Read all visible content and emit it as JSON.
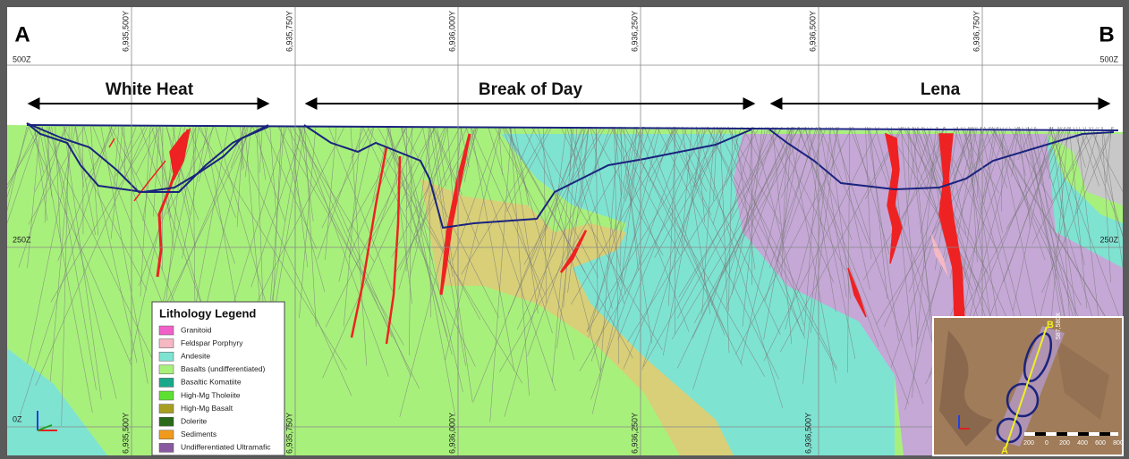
{
  "section_ends": {
    "start": "A",
    "end": "B"
  },
  "elevation_labels": {
    "top_left": "500Z",
    "top_right": "500Z",
    "mid_left": "250Z",
    "mid_right": "250Z",
    "bottom_left": "0Z"
  },
  "northings_top": [
    "6,935,500Y",
    "6,935,750Y",
    "6,936,000Y",
    "6,936,250Y",
    "6,936,500Y",
    "6,936,750Y"
  ],
  "northings_bottom": [
    "6,935,500Y",
    "6,935,750Y",
    "6,936,000Y",
    "6,936,250Y",
    "6,936,500Y"
  ],
  "deposits": [
    "White Heat",
    "Break of Day",
    "Lena"
  ],
  "legend": {
    "title": "Lithology Legend",
    "items": [
      {
        "label": "Granitoid",
        "color": "#f060c8"
      },
      {
        "label": "Feldspar Porphyry",
        "color": "#f6b8c2"
      },
      {
        "label": "Andesite",
        "color": "#7fe3d2"
      },
      {
        "label": "Basalts (undifferentiated)",
        "color": "#a8f07c"
      },
      {
        "label": "Basaltic Komatiite",
        "color": "#1aa88a"
      },
      {
        "label": "High-Mg Tholeiite",
        "color": "#5ee032"
      },
      {
        "label": "High-Mg Basalt",
        "color": "#a89e22"
      },
      {
        "label": "Dolerite",
        "color": "#2a6a1a"
      },
      {
        "label": "Sediments",
        "color": "#f09a1c"
      },
      {
        "label": "Undifferentiated Ultramafic",
        "color": "#8a5aa0"
      }
    ]
  },
  "inset": {
    "end_labels": [
      "B",
      "A"
    ],
    "easting": "587,580X",
    "scale": [
      "200",
      "0",
      "200",
      "400",
      "600",
      "800"
    ]
  }
}
